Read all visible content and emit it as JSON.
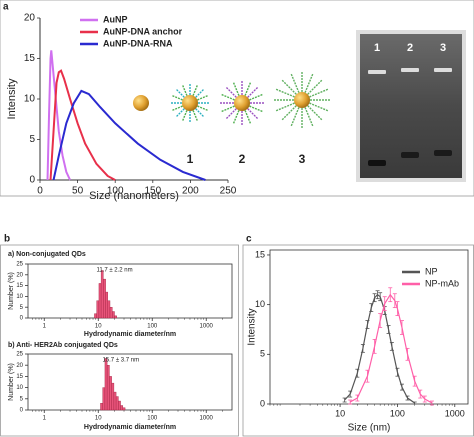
{
  "panels": [
    "a",
    "b",
    "c"
  ],
  "diagram": {
    "particle_labels": [
      "1",
      "2",
      "3"
    ],
    "gel_lanes": [
      "1",
      "2",
      "3"
    ]
  },
  "chart_data": [
    {
      "type": "line",
      "xlabel": "Size (nanometers)",
      "ylabel": "Intensity",
      "xlim": [
        0,
        250
      ],
      "xticks": [
        0,
        50,
        100,
        150,
        200,
        250
      ],
      "ylim": [
        0,
        20
      ],
      "yticks": [
        0,
        5,
        10,
        15,
        20
      ],
      "legend": "top",
      "series": [
        {
          "name": "AuNP",
          "color": "#d070f0",
          "x": [
            10,
            12,
            14,
            15,
            17,
            20,
            25,
            30,
            35,
            40
          ],
          "values": [
            0,
            8,
            15,
            16,
            14,
            11,
            6,
            3,
            1,
            0
          ]
        },
        {
          "name": "AuNP-DNA anchor",
          "color": "#e8304a",
          "x": [
            14,
            18,
            22,
            25,
            28,
            32,
            40,
            50,
            60,
            75,
            90,
            100
          ],
          "values": [
            0,
            6,
            12,
            13.3,
            13.5,
            12.5,
            10,
            7,
            4.5,
            2,
            0.5,
            0
          ]
        },
        {
          "name": "AuNP-DNA-RNA",
          "color": "#2a2ad0",
          "x": [
            18,
            25,
            35,
            45,
            55,
            65,
            80,
            100,
            130,
            160,
            190,
            220
          ],
          "values": [
            0,
            3,
            7,
            9.5,
            11,
            10.6,
            9,
            7,
            4.5,
            2.5,
            1,
            0
          ]
        }
      ]
    },
    {
      "type": "histogram",
      "title": "a) Non-conjugated QDs",
      "annotation": "11.7 ± 2.2 nm",
      "xlabel": "Hydrodynamic diameter/nm",
      "ylabel": "Number (%)",
      "log_x": true,
      "xlim": [
        0.5,
        3000
      ],
      "xticks": [
        1,
        10,
        100,
        1000
      ],
      "ylim": [
        0,
        25
      ],
      "yticks": [
        0,
        5,
        10,
        15,
        20,
        25
      ],
      "color": "#e8547a",
      "bins": [
        8.5,
        9.35,
        10.3,
        11.3,
        12.4,
        13.7,
        15.0,
        16.5,
        18.2,
        20.0,
        22.0
      ],
      "values": [
        2,
        8,
        16,
        22,
        18,
        12,
        8,
        5,
        3,
        1
      ]
    },
    {
      "type": "histogram",
      "title": "b) Anti- HER2Ab conjugated QDs",
      "annotation": "15.7 ± 3.7 nm",
      "xlabel": "Hydrodynamic diameter/nm",
      "ylabel": "Number (%)",
      "log_x": true,
      "xlim": [
        0.5,
        3000
      ],
      "xticks": [
        1,
        10,
        100,
        1000
      ],
      "ylim": [
        0,
        25
      ],
      "yticks": [
        0,
        5,
        10,
        15,
        20,
        25
      ],
      "color": "#e8547a",
      "bins": [
        11,
        12.1,
        13.3,
        14.6,
        16.1,
        17.7,
        19.5,
        21.4,
        23.6,
        25.9,
        28.5,
        31.4
      ],
      "values": [
        3,
        10,
        23,
        20,
        15,
        12,
        8,
        6,
        4,
        2,
        1
      ]
    },
    {
      "type": "line",
      "xlabel": "Size (nm)",
      "ylabel": "Intensity",
      "log_x": true,
      "xlim": [
        0.6,
        1700
      ],
      "xticks": [
        10,
        100,
        1000
      ],
      "ylim": [
        0,
        15.5
      ],
      "yticks": [
        0,
        5,
        10,
        15
      ],
      "legend": "upper right",
      "series": [
        {
          "name": "NP",
          "color": "#555555",
          "x": [
            12,
            15,
            20,
            25,
            30,
            35,
            40,
            45,
            50,
            60,
            70,
            80,
            100,
            120,
            150,
            200
          ],
          "values": [
            0.4,
            1.0,
            3.1,
            5.6,
            8.0,
            9.7,
            10.7,
            11.0,
            10.8,
            9.4,
            7.5,
            5.8,
            3.2,
            1.7,
            0.6,
            0.1
          ],
          "errors": [
            0.2,
            0.3,
            0.4,
            0.4,
            0.4,
            0.4,
            0.4,
            0.4,
            0.4,
            0.4,
            0.4,
            0.4,
            0.4,
            0.3,
            0.2,
            0.1
          ]
        },
        {
          "name": "NP-mAb",
          "color": "#ff5fa8",
          "x": [
            15,
            20,
            30,
            40,
            50,
            60,
            75,
            90,
            100,
            120,
            150,
            200,
            250,
            300,
            400
          ],
          "values": [
            0.2,
            0.6,
            2.8,
            5.8,
            8.4,
            10.1,
            11.0,
            10.4,
            9.6,
            7.7,
            5.0,
            2.3,
            1.0,
            0.5,
            0.1
          ],
          "errors": [
            0.2,
            0.3,
            0.6,
            0.7,
            0.7,
            0.7,
            0.7,
            0.7,
            0.7,
            0.7,
            0.6,
            0.5,
            0.4,
            0.3,
            0.2
          ]
        }
      ]
    }
  ]
}
